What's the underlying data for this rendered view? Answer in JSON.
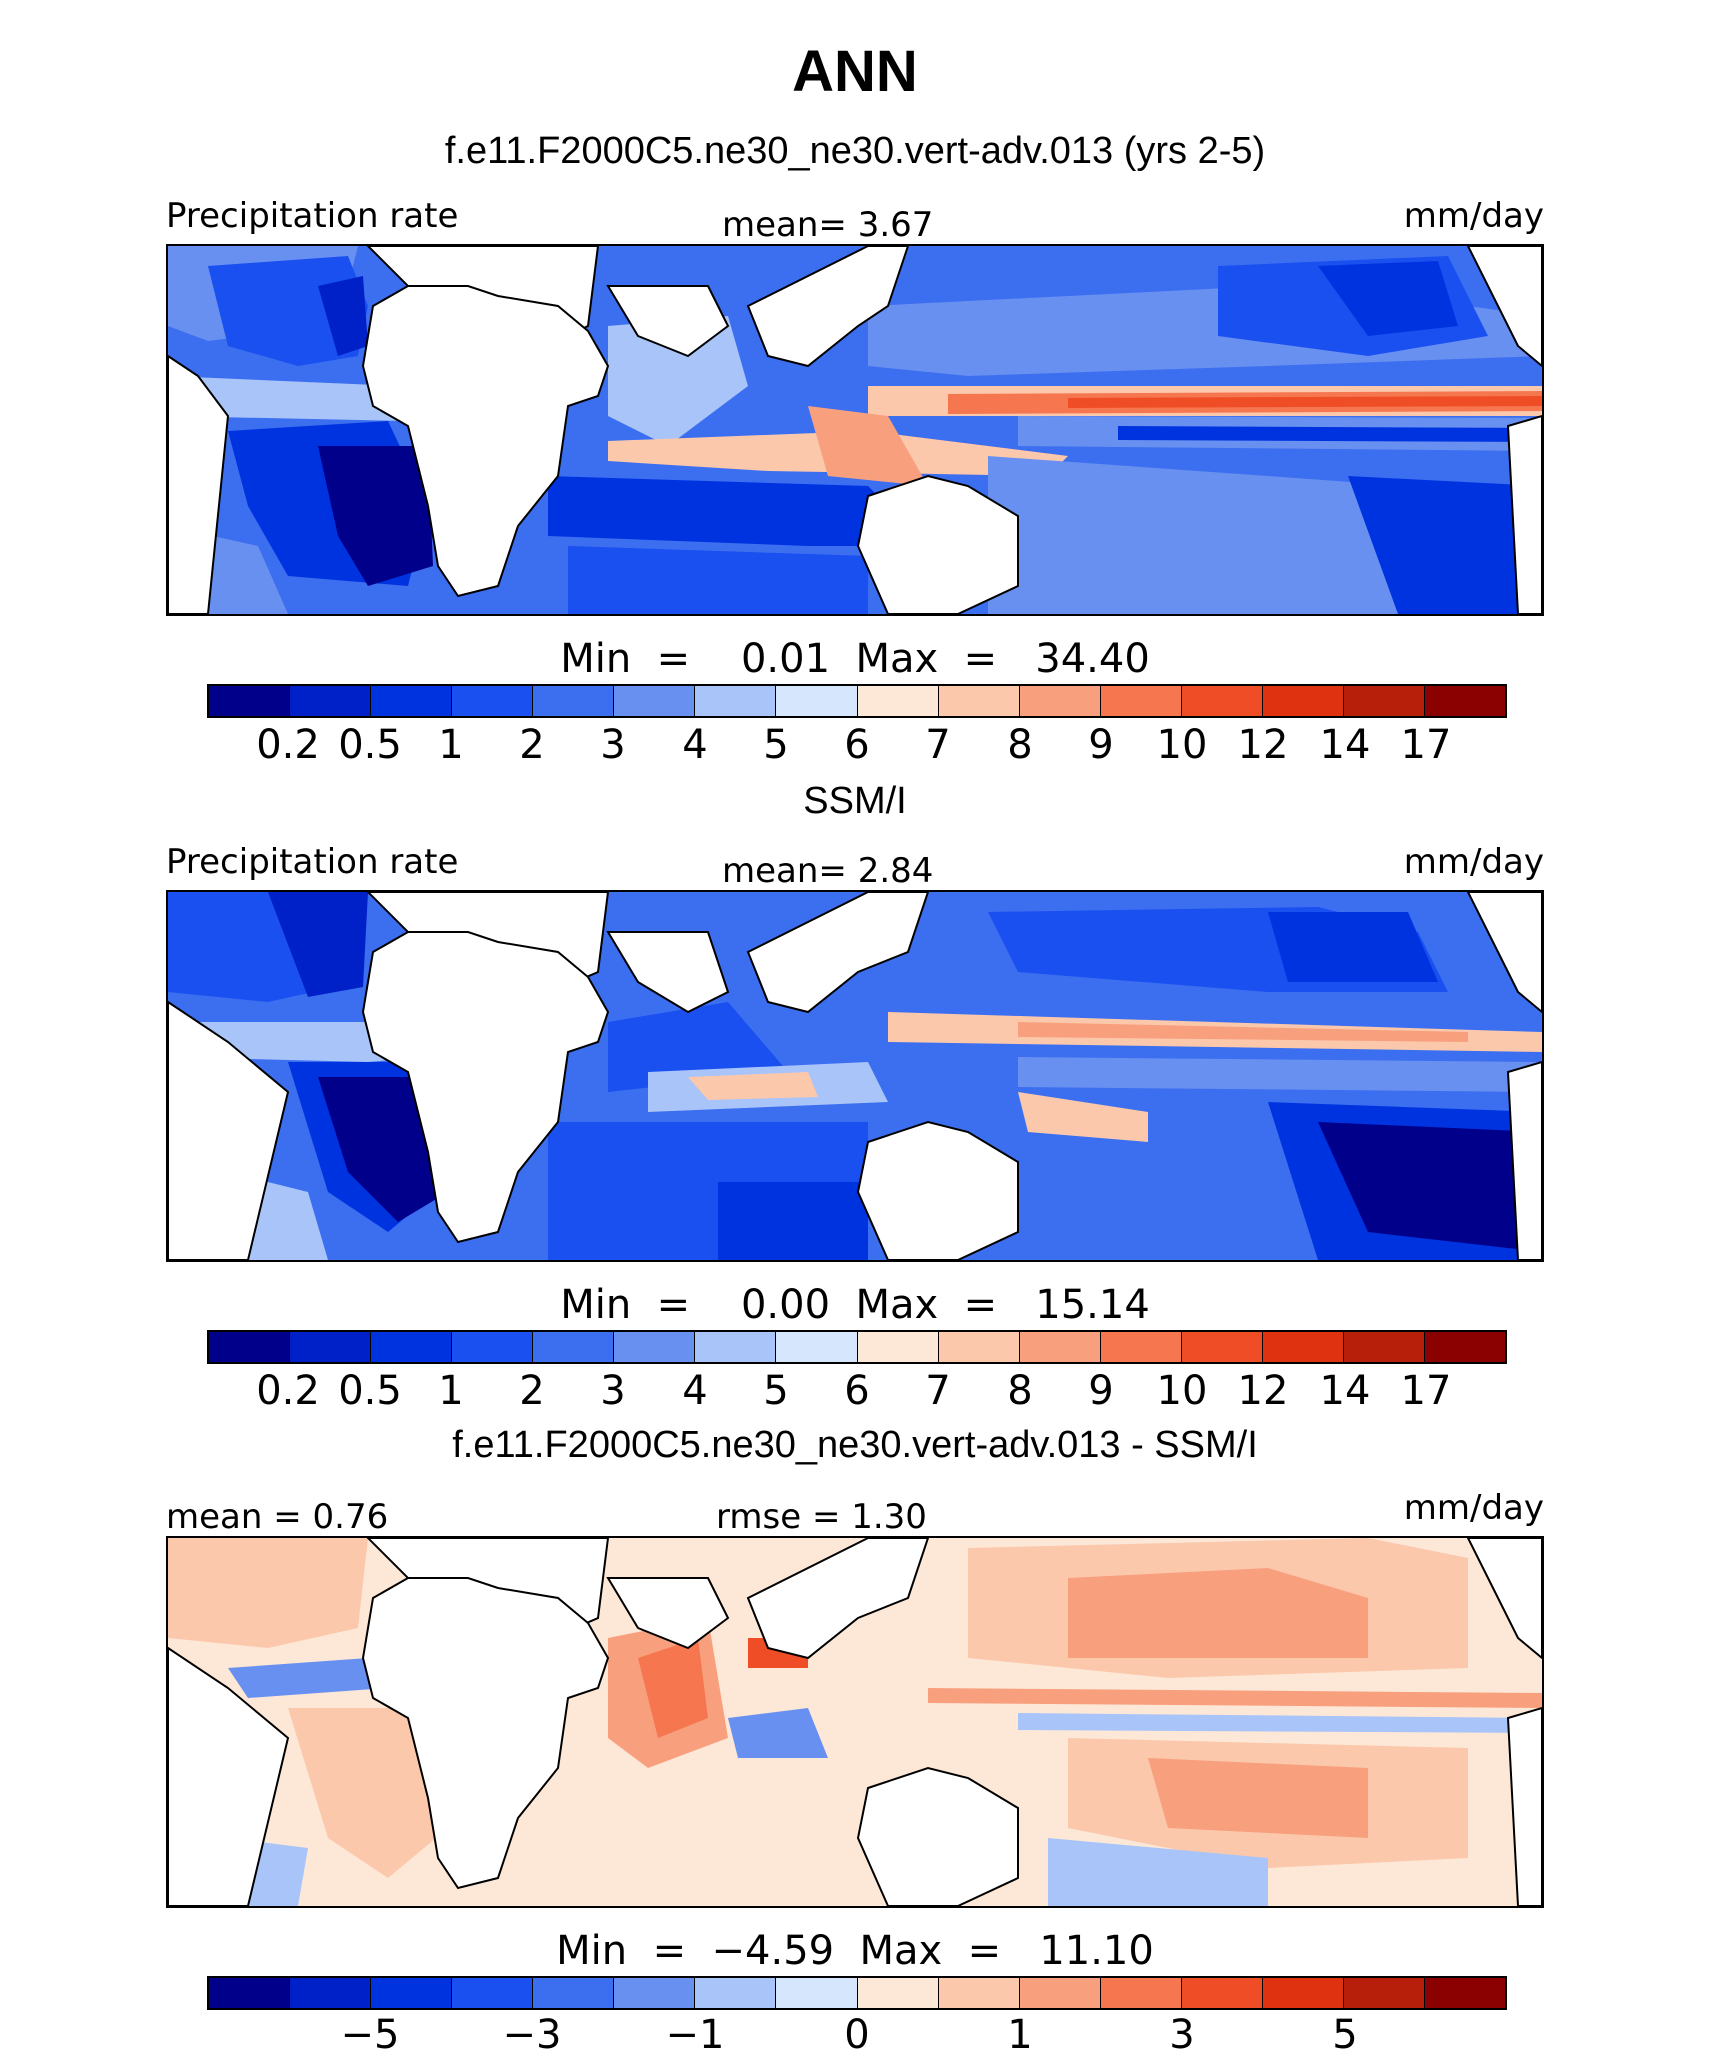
{
  "title": "ANN",
  "colors": [
    "#00008b",
    "#0020c8",
    "#0033e0",
    "#1a4ff0",
    "#3c6ef0",
    "#6890f0",
    "#a8c4f8",
    "#d6e6fc",
    "#fde8d8",
    "#fcc8ac",
    "#f8a07e",
    "#f5764f",
    "#ef4d26",
    "#df3210",
    "#b81f0a",
    "#8b0000"
  ],
  "chart_data": [
    {
      "type": "heatmap",
      "title": "f.e11.F2000C5.ne30_ne30.vert-adv.013 (yrs 2-5)",
      "left_label": "Precipitation rate",
      "center_label": "mean=   3.67",
      "units": "mm/day",
      "min_max": "Min  =    0.01  Max  =   34.40",
      "levels": [
        "0.2",
        "0.5",
        "1",
        "2",
        "3",
        "4",
        "5",
        "6",
        "7",
        "8",
        "9",
        "10",
        "12",
        "14",
        "17"
      ]
    },
    {
      "type": "heatmap",
      "title": "SSM/I",
      "left_label": "Precipitation rate",
      "center_label": "mean=   2.84",
      "units": "mm/day",
      "min_max": "Min  =    0.00  Max  =   15.14",
      "levels": [
        "0.2",
        "0.5",
        "1",
        "2",
        "3",
        "4",
        "5",
        "6",
        "7",
        "8",
        "9",
        "10",
        "12",
        "14",
        "17"
      ]
    },
    {
      "type": "heatmap",
      "title": "f.e11.F2000C5.ne30_ne30.vert-adv.013 - SSM/I",
      "left_label": "mean  =   0.76",
      "center_label": "rmse  =    1.30",
      "units": "mm/day",
      "min_max": "Min  =  −4.59  Max  =   11.10",
      "levels": [
        "−5",
        "−3",
        "−1",
        "0",
        "1",
        "3",
        "5"
      ]
    }
  ]
}
